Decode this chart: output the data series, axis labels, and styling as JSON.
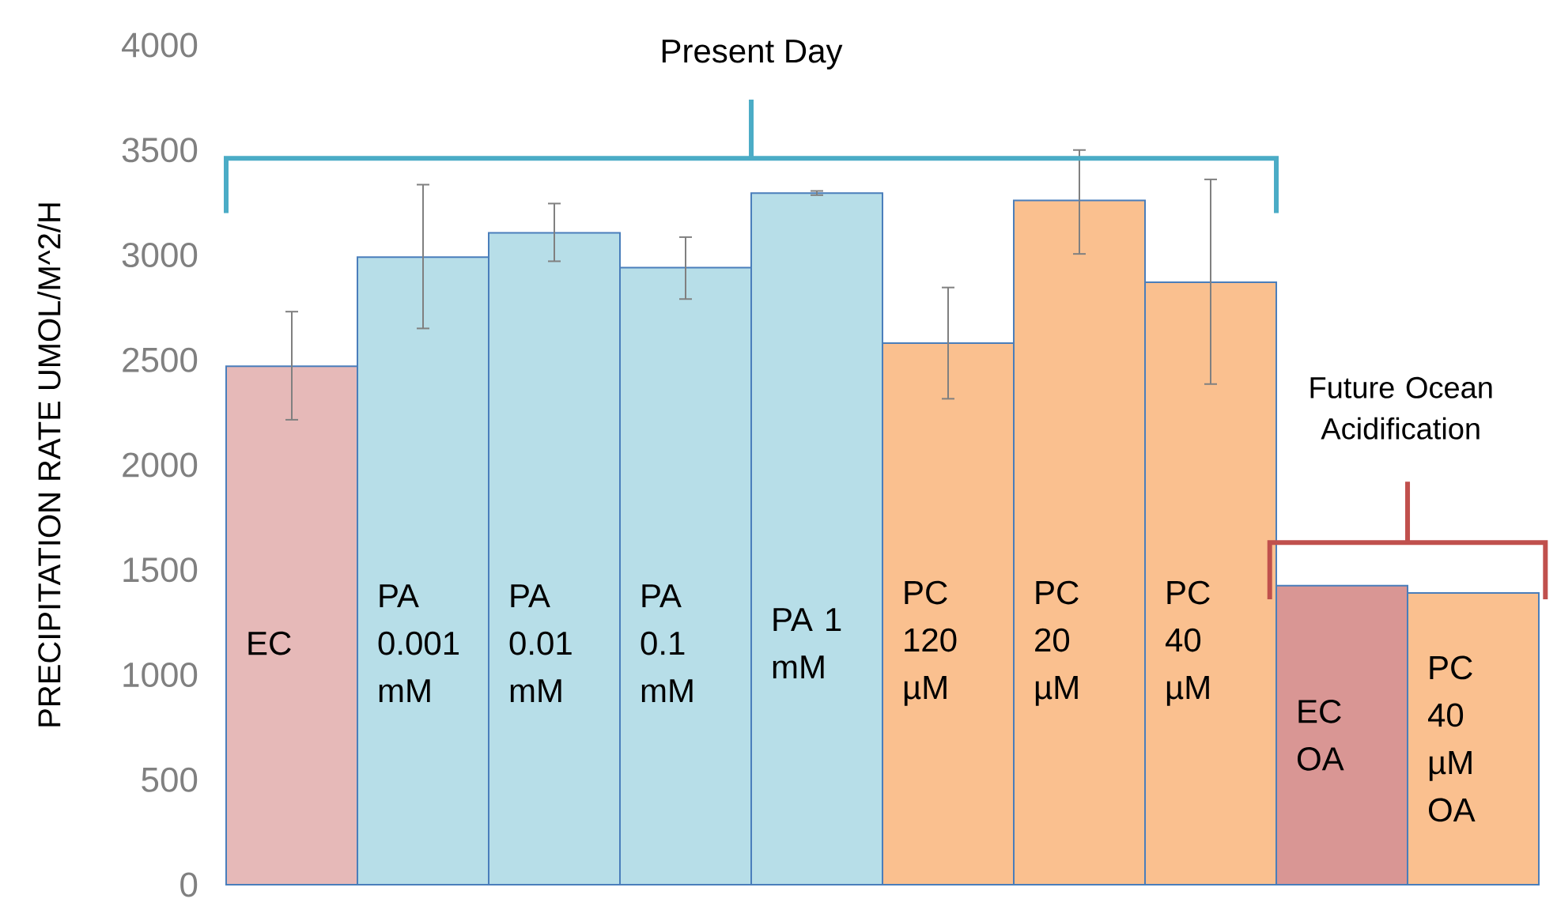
{
  "chart_data": {
    "type": "bar",
    "ylabel": "PRECIPITATION RATE UMOL/M^2/H",
    "categories": [
      "EC",
      "PA 0.001 mM",
      "PA 0.01 mM",
      "PA 0.1 mM",
      "PA 1 mM",
      "PC 120 µM",
      "PC 20 µM",
      "PC 40 µM",
      "EC OA",
      "PC 40 µM OA"
    ],
    "values": [
      2470,
      2990,
      3105,
      2940,
      3295,
      2580,
      3260,
      2870,
      1425,
      1390
    ],
    "errors": [
      [
        2215,
        2730
      ],
      [
        2650,
        3335
      ],
      [
        2970,
        3245
      ],
      [
        2790,
        3085
      ],
      [
        3285,
        3305
      ],
      [
        2315,
        2845
      ],
      [
        3005,
        3500
      ],
      [
        2385,
        3360
      ],
      null,
      null
    ],
    "colors": [
      "#e6b9b8",
      "#b7dee8",
      "#b7dee8",
      "#b7dee8",
      "#b7dee8",
      "#fac08f",
      "#fac08f",
      "#fac08f",
      "#d99694",
      "#fac08f"
    ],
    "ylim": [
      0,
      4000
    ],
    "yticks": [
      0,
      500,
      1000,
      1500,
      2000,
      2500,
      3000,
      3500,
      4000
    ],
    "annotations": [
      "Present Day",
      "Future Ocean Acidification"
    ]
  }
}
